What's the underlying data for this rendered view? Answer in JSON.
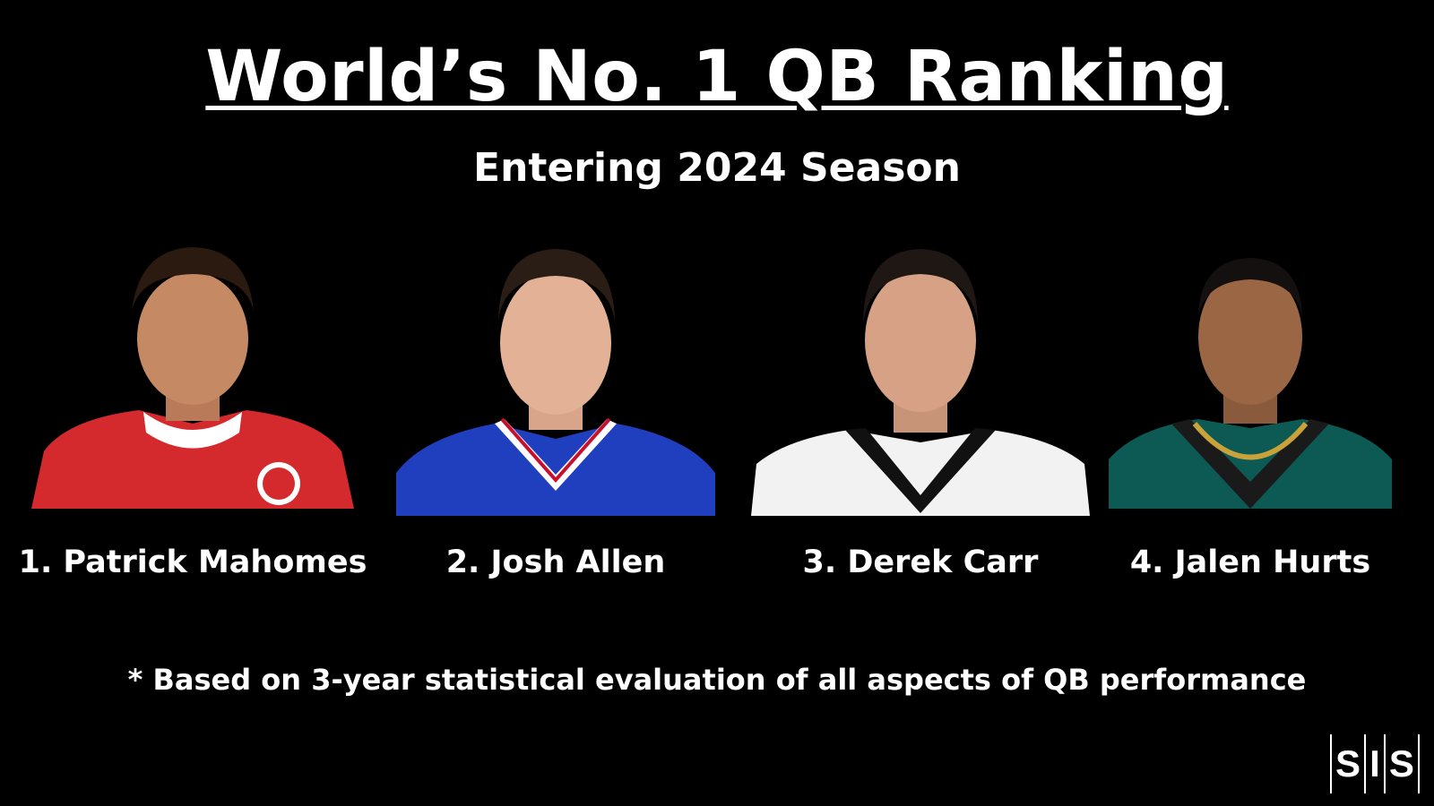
{
  "title": "World’s No. 1 QB Ranking",
  "subtitle": "Entering 2024 Season",
  "players": [
    {
      "label": "1. Patrick Mahomes",
      "jersey_color": "#d42a2e",
      "collar_color": "#ffffff"
    },
    {
      "label": "2. Josh Allen",
      "jersey_color": "#1f3fbf",
      "collar_color": "#ffffff"
    },
    {
      "label": "3. Derek Carr",
      "jersey_color": "#f2f2f2",
      "collar_color": "#111111"
    },
    {
      "label": "4. Jalen Hurts",
      "jersey_color": "#0d5a55",
      "collar_color": "#1a1a1a"
    }
  ],
  "footnote": "* Based on 3-year statistical evaluation of all aspects of QB performance",
  "logo": {
    "letters": [
      "S",
      "I",
      "S"
    ]
  },
  "colors": {
    "background": "#000000",
    "text": "#ffffff"
  }
}
